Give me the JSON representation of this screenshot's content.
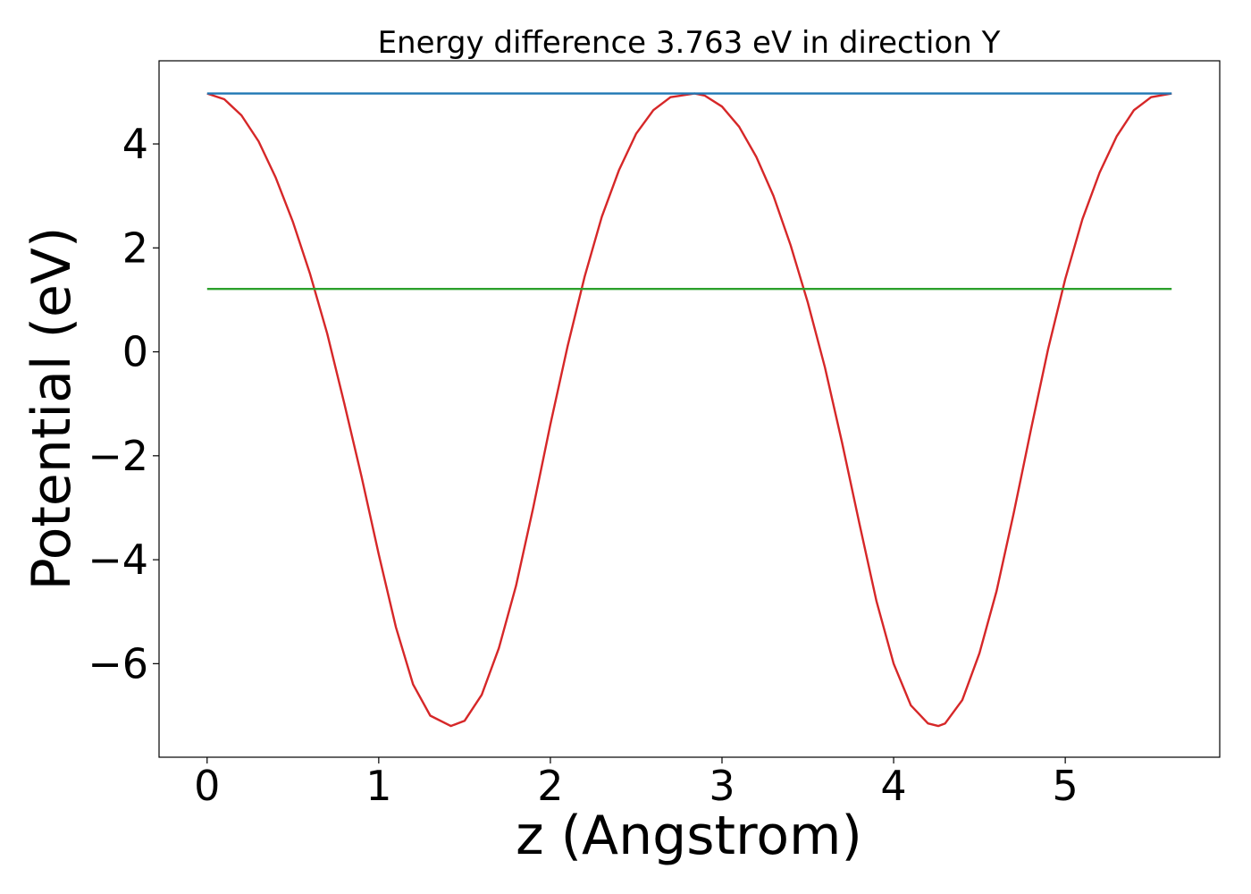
{
  "chart_data": {
    "type": "line",
    "title": "Energy difference 3.763 eV in direction Y",
    "xlabel": "z (Angstrom)",
    "ylabel": "Potential (eV)",
    "xlim": [
      -0.28,
      5.9
    ],
    "ylim": [
      -7.8,
      5.6
    ],
    "xticks": [
      0,
      1,
      2,
      3,
      4,
      5
    ],
    "xtick_labels": [
      "0",
      "1",
      "2",
      "3",
      "4",
      "5"
    ],
    "yticks": [
      4,
      2,
      0,
      -2,
      -4,
      -6
    ],
    "ytick_labels": [
      "4",
      "2",
      "0",
      "−2",
      "−4",
      "−6"
    ],
    "grid": false,
    "series": [
      {
        "color": "#d62728",
        "x": [
          0.0,
          0.1,
          0.2,
          0.3,
          0.4,
          0.5,
          0.6,
          0.7,
          0.8,
          0.9,
          1.0,
          1.1,
          1.2,
          1.3,
          1.42,
          1.5,
          1.6,
          1.7,
          1.8,
          1.9,
          2.0,
          2.1,
          2.2,
          2.3,
          2.4,
          2.5,
          2.6,
          2.7,
          2.84,
          2.9,
          3.0,
          3.1,
          3.2,
          3.3,
          3.4,
          3.5,
          3.6,
          3.7,
          3.8,
          3.9,
          4.0,
          4.1,
          4.2,
          4.26,
          4.3,
          4.4,
          4.5,
          4.6,
          4.7,
          4.8,
          4.9,
          5.0,
          5.1,
          5.2,
          5.3,
          5.4,
          5.5,
          5.62
        ],
        "y": [
          4.97,
          4.86,
          4.55,
          4.05,
          3.35,
          2.5,
          1.5,
          0.35,
          -1.0,
          -2.4,
          -3.9,
          -5.3,
          -6.4,
          -7.0,
          -7.2,
          -7.1,
          -6.6,
          -5.7,
          -4.5,
          -3.0,
          -1.4,
          0.1,
          1.45,
          2.6,
          3.5,
          4.2,
          4.65,
          4.9,
          4.97,
          4.93,
          4.72,
          4.33,
          3.75,
          3.0,
          2.05,
          0.95,
          -0.3,
          -1.75,
          -3.3,
          -4.8,
          -6.0,
          -6.8,
          -7.15,
          -7.2,
          -7.15,
          -6.7,
          -5.8,
          -4.6,
          -3.1,
          -1.5,
          0.05,
          1.4,
          2.55,
          3.45,
          4.15,
          4.65,
          4.9,
          4.97
        ]
      },
      {
        "color": "#1f77b4",
        "x": [
          0.0,
          5.62
        ],
        "y": [
          4.97,
          4.97
        ]
      },
      {
        "color": "#2ca02c",
        "x": [
          0.0,
          5.62
        ],
        "y": [
          1.21,
          1.21
        ]
      }
    ]
  }
}
